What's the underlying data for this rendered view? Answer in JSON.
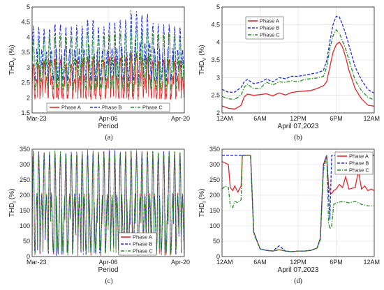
{
  "colors": {
    "phase_a": "#e8262a",
    "phase_b": "#1f2ee6",
    "phase_c": "#1e8f1e"
  },
  "chart_data": [
    {
      "panel": "(a)",
      "type": "line",
      "xlabel": "Period",
      "ylabel": "THD",
      "ylabel_sub": "V",
      "ylabel_unit": " (%)",
      "ylim": [
        1.5,
        5
      ],
      "y_ticks": [
        "1.5",
        "2",
        "2.5",
        "3",
        "3.5",
        "4",
        "4.5",
        "5"
      ],
      "x_ticks": [
        "Mar-23",
        "Apr-06",
        "Apr-20"
      ],
      "xlim": [
        0,
        28
      ],
      "grid": true,
      "legend": {
        "placement": "bottom-center",
        "orientation": "horizontal"
      },
      "series": [
        {
          "name": "Phase A",
          "color": "#e8262a",
          "style": "solid",
          "x": [
            0.5,
            2.5,
            4.5,
            6.5,
            8.5,
            10.5,
            12.5,
            14.5,
            16.5,
            18.5,
            20.5,
            22.5,
            24.5,
            26.5
          ],
          "values": [
            3.1,
            3.2,
            3.25,
            3.1,
            3.25,
            3.3,
            3.2,
            3.3,
            3.3,
            3.45,
            3.3,
            3.2,
            3.25,
            3.2
          ],
          "low": 2.0
        },
        {
          "name": "Phase B",
          "color": "#1f2ee6",
          "style": "dashed",
          "x": [
            0.5,
            2.5,
            4.5,
            6.5,
            8.5,
            10.5,
            12.5,
            14.5,
            16.5,
            18.5,
            20.5,
            22.5,
            24.5,
            26.5
          ],
          "values": [
            4.3,
            4.25,
            4.4,
            4.3,
            4.35,
            4.55,
            4.3,
            4.4,
            4.5,
            4.8,
            4.7,
            4.4,
            4.35,
            4.3
          ],
          "low": 2.6
        },
        {
          "name": "Phase C",
          "color": "#1e8f1e",
          "style": "dashdot",
          "x": [
            0.5,
            2.5,
            4.5,
            6.5,
            8.5,
            10.5,
            12.5,
            14.5,
            16.5,
            18.5,
            20.5,
            22.5,
            24.5,
            26.5
          ],
          "values": [
            3.9,
            4.0,
            4.0,
            3.95,
            4.0,
            4.2,
            4.0,
            4.05,
            4.1,
            4.3,
            4.2,
            4.05,
            4.05,
            4.0
          ],
          "low": 2.3
        }
      ]
    },
    {
      "panel": "(b)",
      "type": "line",
      "xlabel": "April 07,2023",
      "ylabel": "THD",
      "ylabel_sub": "V",
      "ylabel_unit": " (%)",
      "ylim": [
        2,
        5
      ],
      "y_ticks": [
        "2",
        "2.5",
        "3",
        "3.5",
        "4",
        "4.5",
        "5"
      ],
      "x_ticks": [
        "12AM",
        "6AM",
        "12PM",
        "6PM",
        "12AM"
      ],
      "xlim": [
        0,
        24
      ],
      "grid": true,
      "legend": {
        "placement": "top-left",
        "orientation": "vertical"
      },
      "series": [
        {
          "name": "Phase A",
          "color": "#e8262a",
          "style": "solid",
          "x": [
            0,
            1,
            2,
            3,
            3.5,
            4,
            5,
            6,
            7,
            8,
            9,
            10,
            11,
            12,
            13,
            14,
            15,
            16,
            16.5,
            17,
            17.5,
            18,
            18.5,
            19,
            19.5,
            20,
            21,
            22,
            23,
            24
          ],
          "values": [
            2.2,
            2.15,
            2.1,
            2.2,
            2.45,
            2.55,
            2.5,
            2.5,
            2.55,
            2.5,
            2.55,
            2.5,
            2.6,
            2.6,
            2.6,
            2.65,
            2.7,
            2.75,
            2.9,
            3.3,
            3.7,
            3.95,
            4.0,
            3.85,
            3.6,
            3.2,
            2.7,
            2.4,
            2.2,
            2.2
          ]
        },
        {
          "name": "Phase B",
          "color": "#1f2ee6",
          "style": "dashed",
          "x": [
            0,
            1,
            2,
            3,
            3.5,
            4,
            5,
            6,
            7,
            8,
            9,
            10,
            11,
            12,
            13,
            14,
            15,
            16,
            16.5,
            17,
            17.5,
            18,
            18.5,
            19,
            19.5,
            20,
            21,
            22,
            23,
            24
          ],
          "values": [
            2.65,
            2.6,
            2.6,
            2.7,
            2.9,
            2.95,
            2.85,
            2.85,
            2.95,
            2.9,
            3.0,
            2.95,
            3.05,
            3.05,
            3.05,
            3.1,
            3.15,
            3.2,
            3.5,
            4.0,
            4.5,
            4.75,
            4.7,
            4.5,
            4.25,
            3.9,
            3.3,
            2.95,
            2.65,
            2.55
          ]
        },
        {
          "name": "Phase C",
          "color": "#1e8f1e",
          "style": "dashdot",
          "x": [
            0,
            1,
            2,
            3,
            3.5,
            4,
            5,
            6,
            7,
            8,
            9,
            10,
            11,
            12,
            13,
            14,
            15,
            16,
            16.5,
            17,
            17.5,
            18,
            18.5,
            19,
            19.5,
            20,
            21,
            22,
            23,
            24
          ],
          "values": [
            2.45,
            2.4,
            2.4,
            2.5,
            2.75,
            2.8,
            2.7,
            2.7,
            2.85,
            2.8,
            2.9,
            2.85,
            2.9,
            2.9,
            2.95,
            2.95,
            3.0,
            3.05,
            3.3,
            3.8,
            4.2,
            4.35,
            4.25,
            4.05,
            3.8,
            3.5,
            2.9,
            2.65,
            2.45,
            2.35
          ]
        }
      ]
    },
    {
      "panel": "(c)",
      "type": "line",
      "xlabel": "Period",
      "ylabel": "THD",
      "ylabel_sub": "I",
      "ylabel_unit": " (%)",
      "ylim": [
        0,
        350
      ],
      "y_ticks": [
        "0",
        "50",
        "100",
        "150",
        "200",
        "250",
        "300",
        "350"
      ],
      "x_ticks": [
        "Mar-23",
        "Apr-06",
        "Apr-20"
      ],
      "xlim": [
        0,
        28
      ],
      "grid": true,
      "legend": {
        "placement": "bottom-right",
        "orientation": "vertical"
      },
      "series": [
        {
          "name": "Phase A",
          "color": "#e8262a",
          "style": "solid",
          "x": [
            0.5,
            2.5,
            4.5,
            6.5,
            8.5,
            10.5,
            12.5,
            14.5,
            16.5,
            18.5,
            20.5,
            22.5,
            24.5,
            26.5
          ],
          "values": [
            330,
            330,
            330,
            330,
            330,
            330,
            330,
            330,
            330,
            330,
            330,
            330,
            330,
            330
          ],
          "low": 20
        },
        {
          "name": "Phase B",
          "color": "#1f2ee6",
          "style": "dashed",
          "x": [
            0.5,
            2.5,
            4.5,
            6.5,
            8.5,
            10.5,
            12.5,
            14.5,
            16.5,
            18.5,
            20.5,
            22.5,
            24.5,
            26.5
          ],
          "values": [
            330,
            330,
            330,
            330,
            330,
            330,
            330,
            330,
            330,
            330,
            330,
            330,
            330,
            330
          ],
          "low": 20
        },
        {
          "name": "Phase C",
          "color": "#1e8f1e",
          "style": "dashdot",
          "x": [
            0.5,
            2.5,
            4.5,
            6.5,
            8.5,
            10.5,
            12.5,
            14.5,
            16.5,
            18.5,
            20.5,
            22.5,
            24.5,
            26.5
          ],
          "values": [
            330,
            330,
            330,
            330,
            330,
            330,
            330,
            330,
            330,
            330,
            330,
            330,
            330,
            330
          ],
          "low": 20
        }
      ]
    },
    {
      "panel": "(d)",
      "type": "line",
      "xlabel": "April 07,2023",
      "ylabel": "THD",
      "ylabel_sub": "I",
      "ylabel_unit": " (%)",
      "ylim": [
        0,
        350
      ],
      "y_ticks": [
        "0",
        "50",
        "100",
        "150",
        "200",
        "250",
        "300",
        "350"
      ],
      "x_ticks": [
        "12AM",
        "6AM",
        "12PM",
        "6PM",
        "12AM"
      ],
      "xlim": [
        0,
        24
      ],
      "grid": true,
      "legend": {
        "placement": "top-right",
        "orientation": "vertical"
      },
      "series": [
        {
          "name": "Phase A",
          "color": "#e8262a",
          "style": "solid",
          "x": [
            0,
            0.5,
            1,
            1.3,
            1.7,
            2,
            2.5,
            3,
            3.2,
            3.5,
            4,
            4.5,
            5,
            6,
            7,
            8,
            9,
            10,
            11,
            12,
            13,
            14,
            15,
            15.5,
            16,
            16.5,
            16.8,
            17,
            17.3,
            17.6,
            18,
            18.5,
            19,
            19.5,
            20,
            21,
            21.5,
            22,
            22.5,
            23,
            23.5,
            24
          ],
          "values": [
            310,
            305,
            300,
            225,
            215,
            230,
            210,
            230,
            330,
            330,
            330,
            330,
            80,
            25,
            20,
            18,
            22,
            18,
            16,
            18,
            18,
            20,
            28,
            60,
            300,
            330,
            230,
            210,
            205,
            215,
            220,
            235,
            225,
            260,
            220,
            225,
            280,
            220,
            230,
            215,
            220,
            215
          ]
        },
        {
          "name": "Phase B",
          "color": "#1f2ee6",
          "style": "dashed",
          "x": [
            0,
            0.5,
            1,
            1.5,
            2,
            2.5,
            3,
            3.2,
            3.5,
            4,
            4.5,
            5,
            6,
            7,
            8,
            9,
            10,
            11,
            12,
            13,
            14,
            15,
            15.5,
            16,
            16.5,
            17,
            17.3,
            17.5,
            18,
            19,
            20,
            21,
            22,
            23,
            24
          ],
          "values": [
            330,
            330,
            330,
            330,
            330,
            330,
            330,
            330,
            330,
            330,
            330,
            80,
            25,
            20,
            18,
            35,
            18,
            16,
            18,
            18,
            20,
            28,
            60,
            300,
            330,
            120,
            330,
            330,
            330,
            330,
            330,
            330,
            330,
            330,
            330
          ]
        },
        {
          "name": "Phase C",
          "color": "#1e8f1e",
          "style": "dashdot",
          "x": [
            0,
            0.5,
            1,
            1.3,
            1.7,
            2,
            2.5,
            3,
            3.2,
            3.5,
            4,
            4.5,
            5,
            6,
            7,
            8,
            9,
            10,
            11,
            12,
            13,
            14,
            15,
            15.5,
            16,
            16.5,
            16.8,
            17,
            17.3,
            17.6,
            18,
            19,
            20,
            21,
            22,
            23,
            24
          ],
          "values": [
            220,
            230,
            225,
            165,
            160,
            180,
            175,
            185,
            330,
            330,
            330,
            330,
            75,
            25,
            20,
            18,
            22,
            18,
            16,
            18,
            18,
            20,
            28,
            55,
            280,
            330,
            110,
            90,
            100,
            170,
            175,
            180,
            175,
            180,
            170,
            165,
            165
          ]
        }
      ]
    }
  ]
}
